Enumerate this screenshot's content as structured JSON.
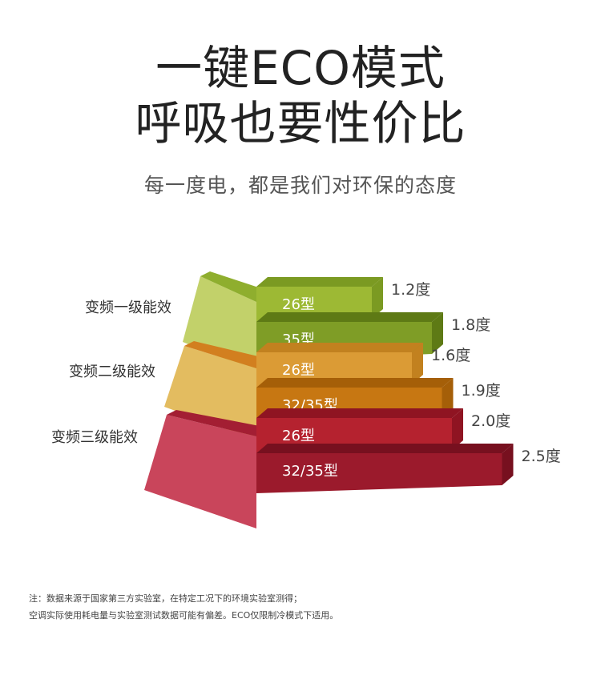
{
  "header": {
    "title_line1": "一键ECO模式",
    "title_line2": "呼吸也要性价比",
    "subtitle": "每一度电，都是我们对环保的态度"
  },
  "footnote": {
    "line1": "注：数据来源于国家第三方实验室，在特定工况下的环境实验室测得；",
    "line2": "空调实际使用耗电量与实验室测试数据可能有偏差。ECO仅限制冷模式下适用。"
  },
  "chart_data": {
    "type": "bar",
    "unit": "度",
    "tiers": [
      {
        "name": "变频一级能效",
        "colors": {
          "front": "#C2D16A",
          "top": "#8FAE2E",
          "side": "#6E8A1E"
        },
        "bars": [
          {
            "label": "26型",
            "value": 1.2,
            "value_label": "1.2度",
            "color": "#9DB934",
            "top_color": "#7B9A22"
          },
          {
            "label": "35型",
            "value": 1.8,
            "value_label": "1.8度",
            "color": "#7F9D26",
            "top_color": "#5E7A15"
          }
        ]
      },
      {
        "name": "变频二级能效",
        "colors": {
          "front": "#E3BC60",
          "top": "#D27F1F",
          "side": "#B8741D"
        },
        "bars": [
          {
            "label": "26型",
            "value": 1.6,
            "value_label": "1.6度",
            "color": "#DB9B35",
            "top_color": "#C2811F"
          },
          {
            "label": "32/35型",
            "value": 1.9,
            "value_label": "1.9度",
            "color": "#C77712",
            "top_color": "#A55F08"
          }
        ]
      },
      {
        "name": "变频三级能效",
        "colors": {
          "front": "#C9455B",
          "top": "#A31E33",
          "side": "#8E1A2C"
        },
        "bars": [
          {
            "label": "26型",
            "value": 2.0,
            "value_label": "2.0度",
            "color": "#B5222F",
            "top_color": "#8F1422"
          },
          {
            "label": "32/35型",
            "value": 2.5,
            "value_label": "2.5度",
            "color": "#9B1A2C",
            "top_color": "#77101F"
          }
        ]
      }
    ]
  }
}
